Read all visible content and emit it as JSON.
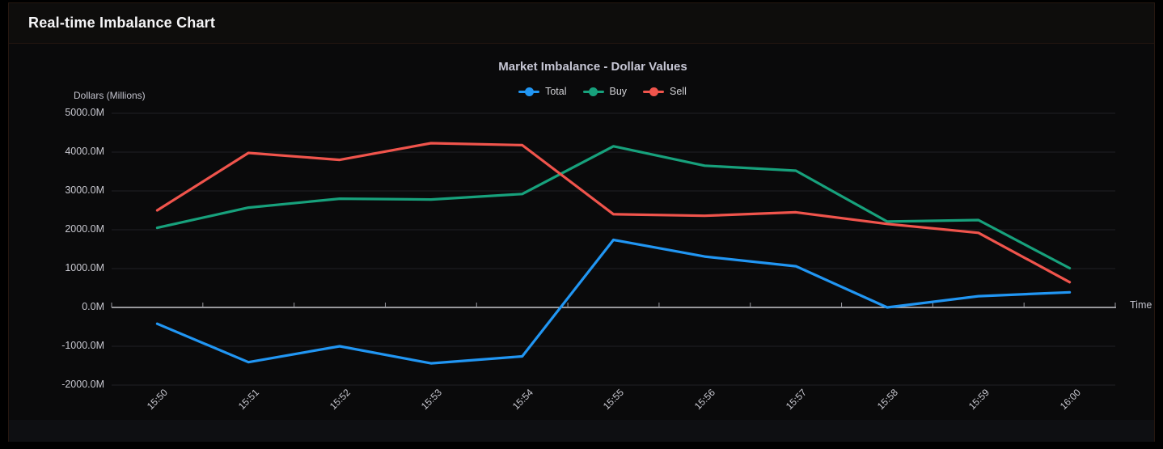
{
  "panel": {
    "title": "Real-time Imbalance Chart"
  },
  "chart_data": {
    "type": "line",
    "title": "Market Imbalance - Dollar Values",
    "y_axis_title": "Dollars (Millions)",
    "x_axis_title": "Time",
    "unit": "M (millions of dollars)",
    "categories": [
      "15:50",
      "15:51",
      "15:52",
      "15:53",
      "15:54",
      "15:55",
      "15:56",
      "15:57",
      "15:58",
      "15:59",
      "16:00"
    ],
    "ylim": [
      -2000,
      5000
    ],
    "grid": true,
    "legend_position": "top-center",
    "x_label_rotation_deg": 45,
    "y_ticks": [
      {
        "value": 5000,
        "label": "5000.0M"
      },
      {
        "value": 4000,
        "label": "4000.0M"
      },
      {
        "value": 3000,
        "label": "3000.0M"
      },
      {
        "value": 2000,
        "label": "2000.0M"
      },
      {
        "value": 1000,
        "label": "1000.0M"
      },
      {
        "value": 0,
        "label": "0.0M"
      },
      {
        "value": -1000,
        "label": "-1000.0M"
      },
      {
        "value": -2000,
        "label": "-2000.0M"
      }
    ],
    "series": [
      {
        "name": "Total",
        "color": "#2196f3",
        "values": [
          -420,
          -1410,
          -1000,
          -1440,
          -1260,
          1740,
          1310,
          1060,
          0,
          290,
          390
        ]
      },
      {
        "name": "Buy",
        "color": "#17a17c",
        "values": [
          2050,
          2570,
          2800,
          2780,
          2920,
          4150,
          3650,
          3520,
          2210,
          2250,
          1010
        ]
      },
      {
        "name": "Sell",
        "color": "#f0544c",
        "values": [
          2500,
          3980,
          3800,
          4230,
          4180,
          2400,
          2360,
          2450,
          2150,
          1920,
          650
        ]
      }
    ]
  },
  "colors": {
    "background": "#000000",
    "panel_bg": "#0b0b0c",
    "panel_border": "#261710",
    "text": "#c8c8d0",
    "title_text": "#f5f5f7",
    "chart_title_text": "#c7c7d5",
    "axis_line": "#c7c7cd",
    "grid_line": "#202024",
    "total": "#2196f3",
    "buy": "#17a17c",
    "sell": "#f0544c"
  }
}
